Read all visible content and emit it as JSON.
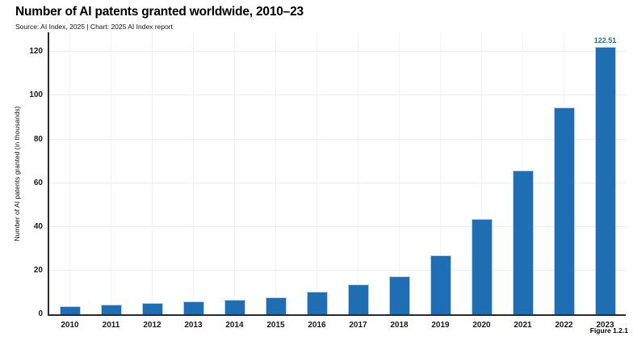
{
  "header": {
    "title": "Number of AI patents granted worldwide, 2010–23",
    "subtitle": "Source: AI Index, 2025 | Chart: 2025 AI Index report"
  },
  "footer": {
    "figure_label": "Figure 1.2.1"
  },
  "colors": {
    "bar": "#1f6eb4",
    "annotation": "#1f6eb4",
    "axis": "#2b2b2b",
    "grid": "#ececec",
    "background": "#ffffff",
    "text": "#000000"
  },
  "chart_data": {
    "type": "bar",
    "title": "Number of AI patents granted worldwide, 2010–23",
    "subtitle": "Source: AI Index, 2025 | Chart: 2025 AI Index report",
    "categories": [
      "2010",
      "2011",
      "2012",
      "2013",
      "2014",
      "2015",
      "2016",
      "2017",
      "2018",
      "2019",
      "2020",
      "2021",
      "2022",
      "2023"
    ],
    "values": [
      3.8,
      4.4,
      5.0,
      6.1,
      6.5,
      7.7,
      10.4,
      13.5,
      17.3,
      27.0,
      43.5,
      65.7,
      94.8,
      122.51
    ],
    "xlabel": "",
    "ylabel": "Number of AI patents granted (in thousands)",
    "ylim": [
      0,
      129
    ],
    "yticks": [
      0,
      20,
      40,
      60,
      80,
      100,
      120
    ],
    "grid": true,
    "legend": null,
    "bar_color": "#1f6eb4",
    "annotations": [
      {
        "category": "2023",
        "text": "122.51"
      }
    ]
  }
}
